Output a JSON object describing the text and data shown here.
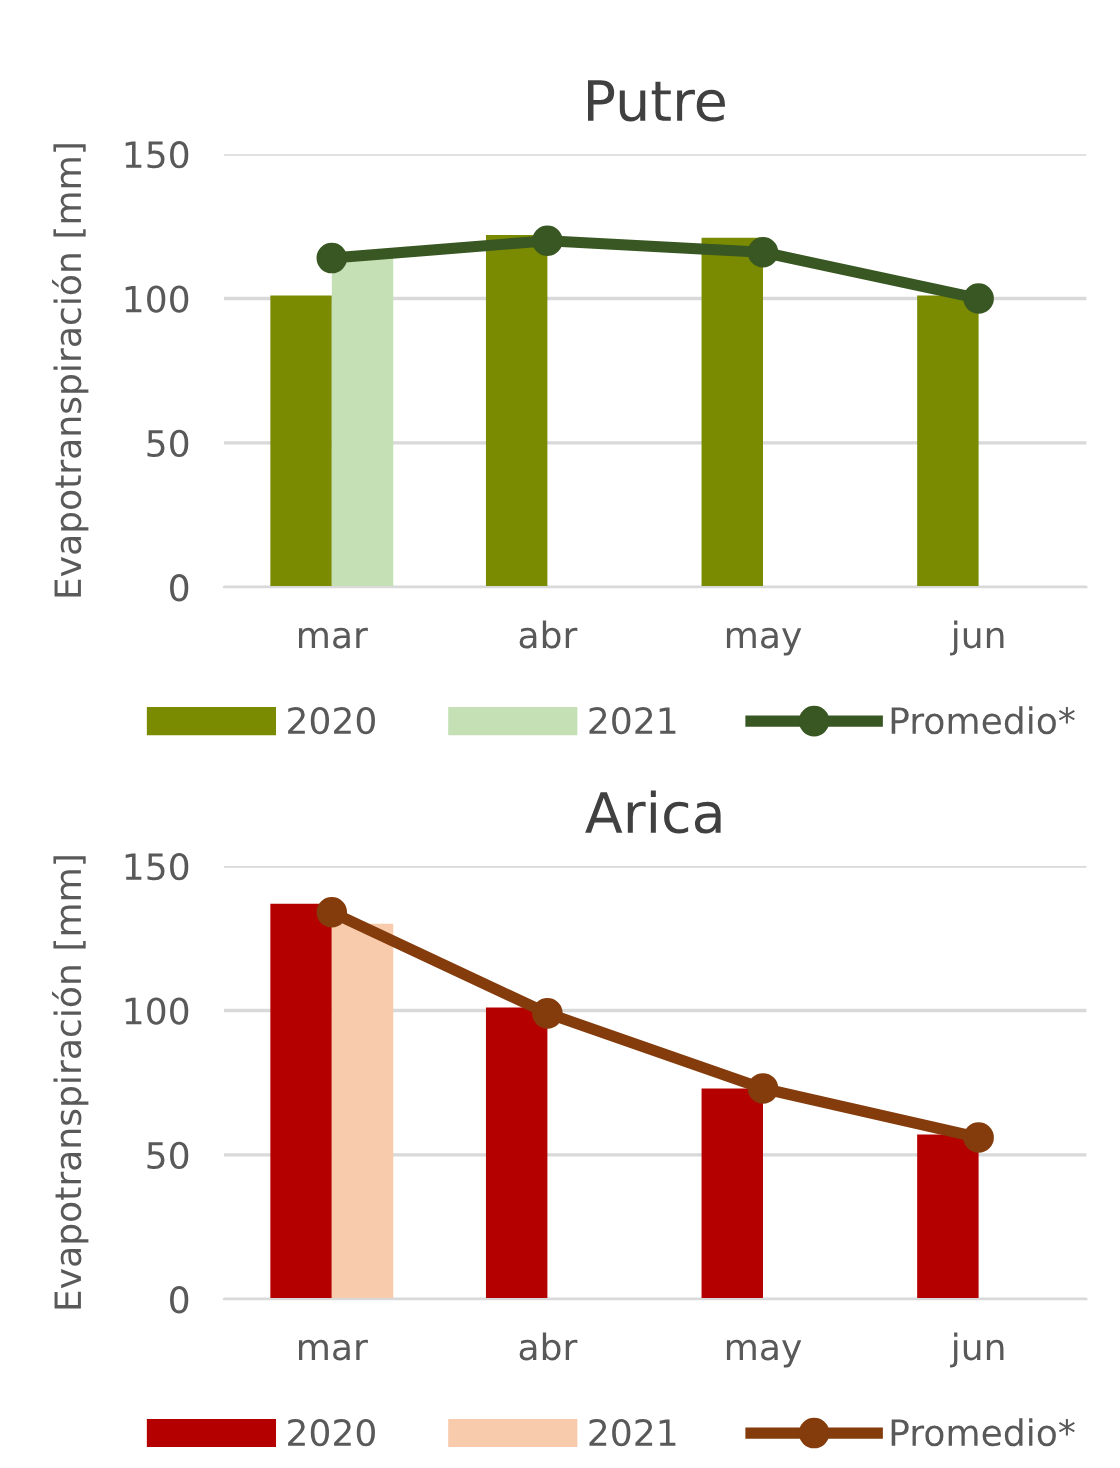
{
  "chart_data": [
    {
      "type": "bar",
      "title": "Putre",
      "ylabel": "Evapotranspiración [mm]",
      "categories": [
        "mar",
        "abr",
        "may",
        "jun"
      ],
      "ylim": [
        0,
        150
      ],
      "yticks": [
        0,
        50,
        100,
        150
      ],
      "grid": "y",
      "legend": "bottom",
      "series": [
        {
          "name": "2020",
          "color": "#7a8b02",
          "values": [
            101,
            122,
            121,
            101
          ]
        },
        {
          "name": "2021",
          "color": "#c5e0b4",
          "values": [
            114,
            null,
            null,
            null
          ]
        },
        {
          "name": "Promedio*",
          "type": "line",
          "color": "#385723",
          "marker": "circle",
          "line_style": "solid",
          "values": [
            114,
            120,
            116,
            100
          ]
        }
      ]
    },
    {
      "type": "bar",
      "title": "Arica",
      "ylabel": "Evapotranspiración [mm]",
      "categories": [
        "mar",
        "abr",
        "may",
        "jun"
      ],
      "ylim": [
        0,
        150
      ],
      "yticks": [
        0,
        50,
        100,
        150
      ],
      "grid": "y",
      "legend": "bottom",
      "series": [
        {
          "name": "2020",
          "color": "#b50000",
          "values": [
            137,
            101,
            73,
            57
          ]
        },
        {
          "name": "2021",
          "color": "#f8cbad",
          "values": [
            130,
            null,
            null,
            null
          ]
        },
        {
          "name": "Promedio*",
          "type": "line",
          "color": "#843c0c",
          "marker": "circle",
          "line_style": "solid",
          "values": [
            134,
            99,
            73,
            56
          ]
        }
      ]
    }
  ]
}
